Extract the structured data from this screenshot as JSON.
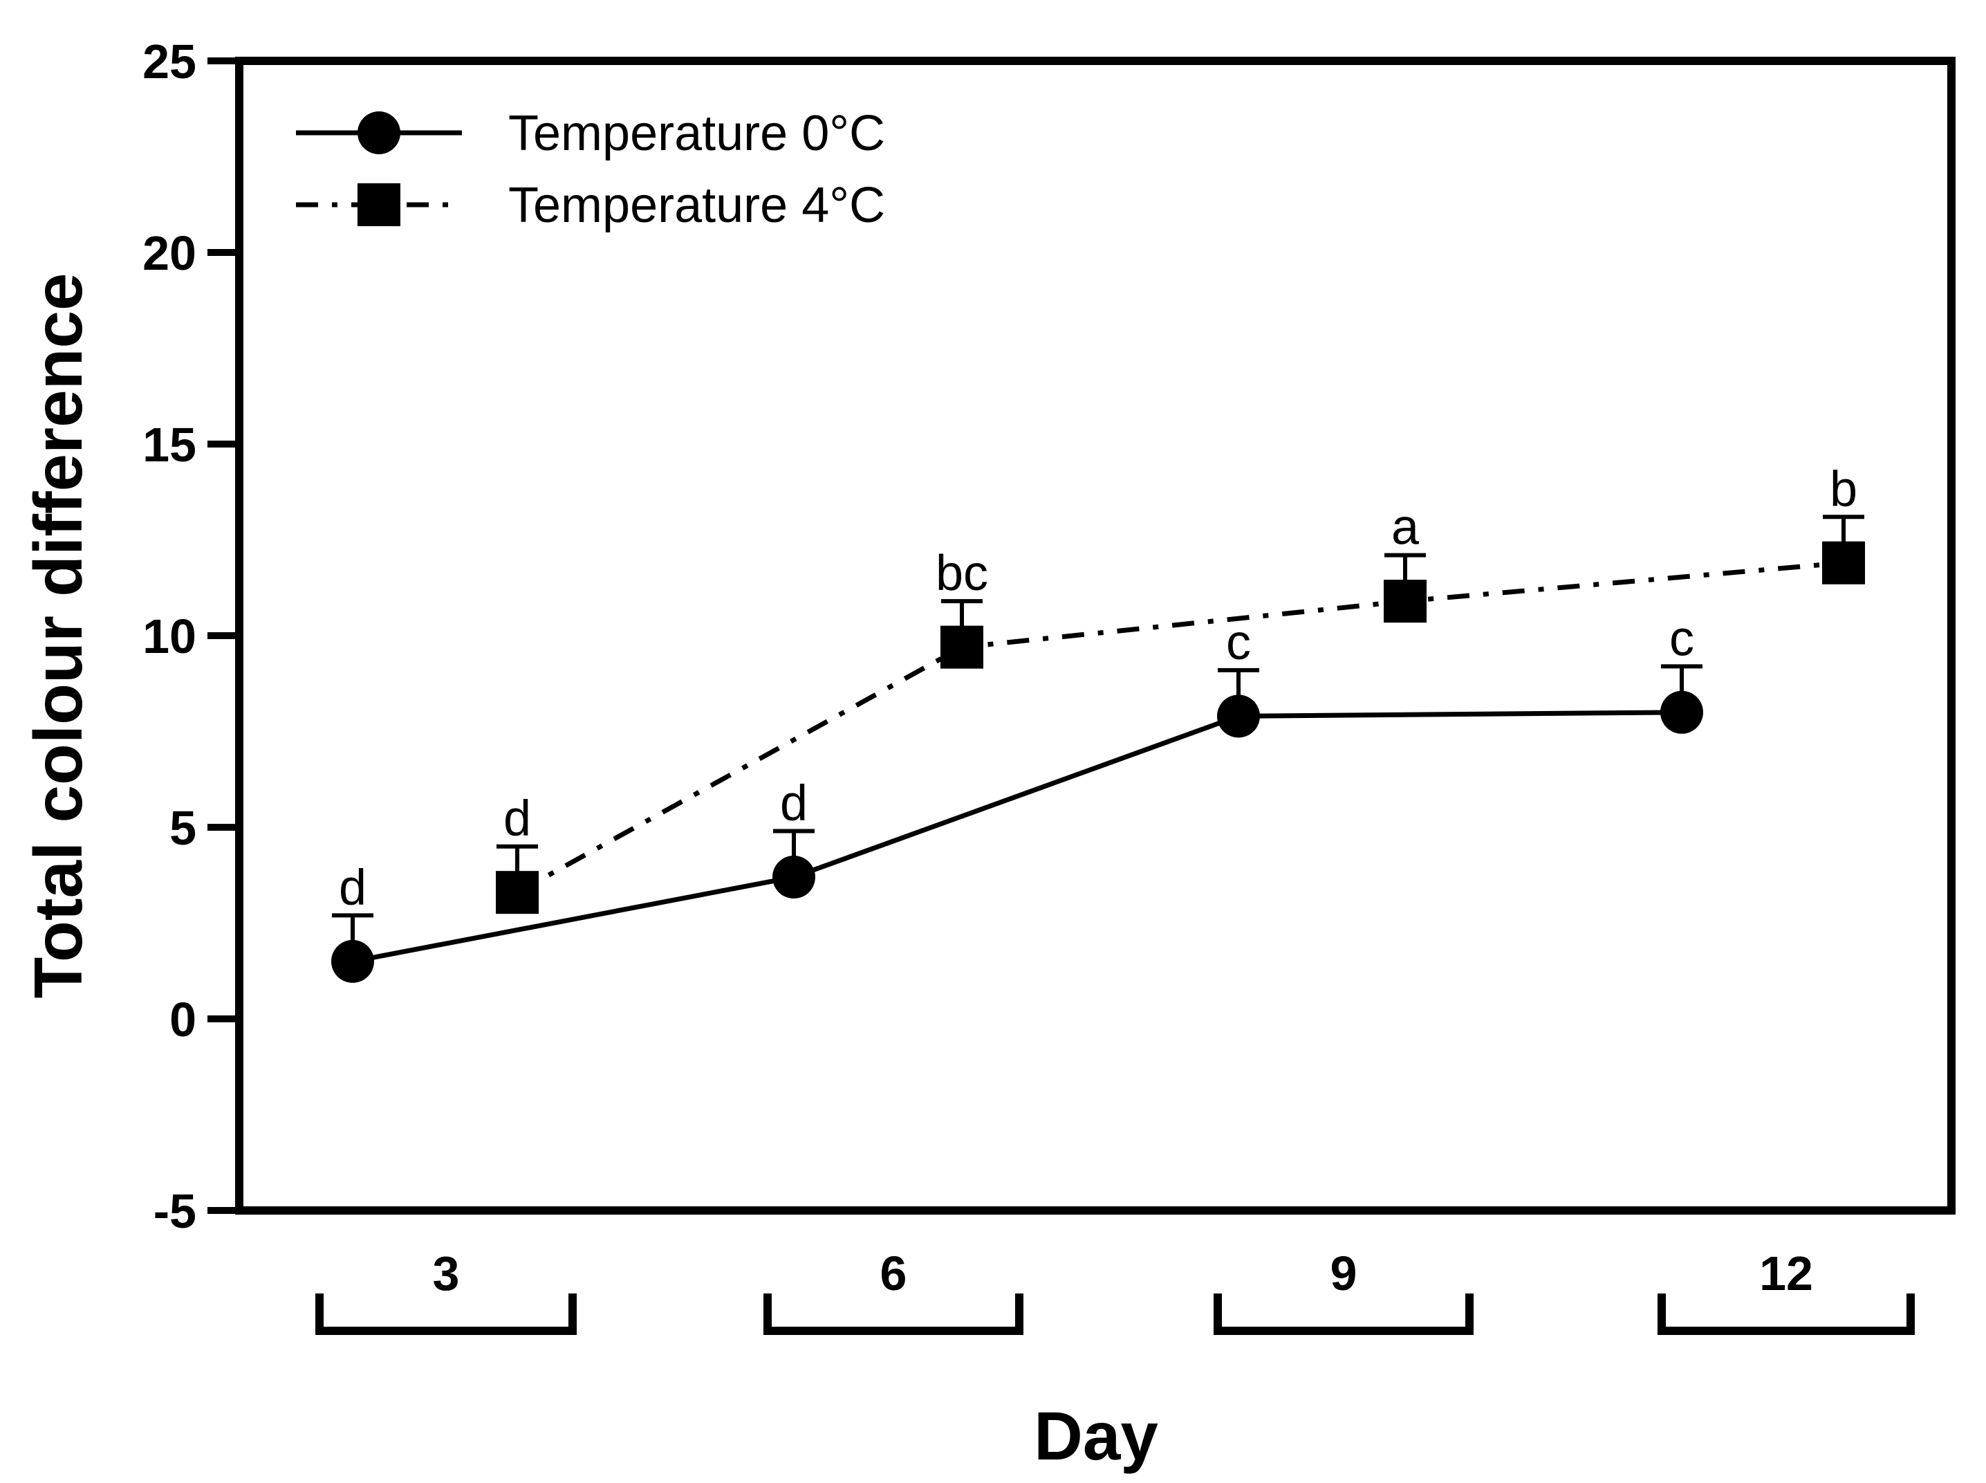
{
  "chart_data": {
    "type": "line",
    "title": "",
    "xlabel": "Day",
    "ylabel": "Total colour difference",
    "ylim": [
      -5,
      25
    ],
    "yticks": [
      -5,
      0,
      5,
      10,
      15,
      20,
      25
    ],
    "categories": [
      "3",
      "6",
      "9",
      "12"
    ],
    "legend_position": "top-left",
    "series": [
      {
        "name": "Temperature 0°C",
        "marker": "circle",
        "line": "solid",
        "values": [
          1.5,
          3.7,
          7.9,
          8.0
        ],
        "errors": [
          1.2,
          1.2,
          1.2,
          1.2
        ],
        "labels": [
          "d",
          "d",
          "c",
          "c"
        ]
      },
      {
        "name": "Temperature 4°C",
        "marker": "square",
        "line": "dash-dot",
        "values": [
          3.3,
          9.7,
          10.9,
          11.9
        ],
        "errors": [
          1.2,
          1.2,
          1.2,
          1.2
        ],
        "labels": [
          "d",
          "bc",
          "a",
          "b"
        ]
      }
    ]
  }
}
